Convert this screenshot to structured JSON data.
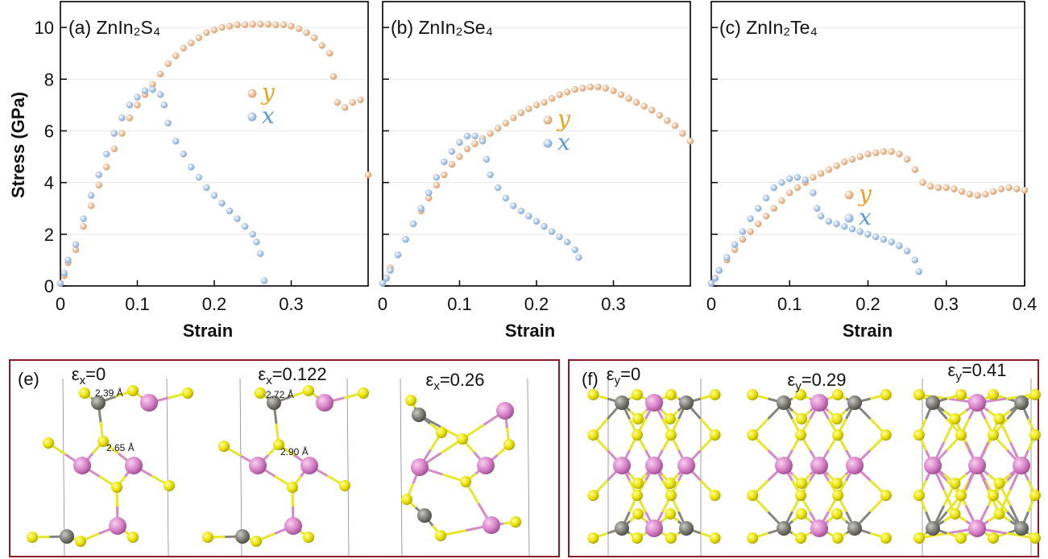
{
  "chart_data": [
    {
      "type": "scatter",
      "title": "(a) ZnIn₂S₄",
      "xlabel": "Strain",
      "ylabel": "Stress (GPa)",
      "xlim": [
        0,
        0.4
      ],
      "ylim": [
        0,
        11
      ],
      "xticks": [
        0,
        0.1,
        0.2,
        0.3
      ],
      "yticks": [
        0,
        2,
        4,
        6,
        8,
        10
      ],
      "ytick_labels": true,
      "grid": true,
      "series": [
        {
          "name": "y",
          "color": "#e0a878",
          "x": [
            0,
            0.005,
            0.01,
            0.02,
            0.03,
            0.04,
            0.05,
            0.06,
            0.07,
            0.08,
            0.09,
            0.1,
            0.11,
            0.12,
            0.13,
            0.14,
            0.15,
            0.16,
            0.17,
            0.18,
            0.19,
            0.2,
            0.21,
            0.22,
            0.23,
            0.24,
            0.25,
            0.26,
            0.27,
            0.28,
            0.29,
            0.3,
            0.31,
            0.32,
            0.33,
            0.34,
            0.35,
            0.355,
            0.36,
            0.37,
            0.38,
            0.39,
            0.4
          ],
          "values": [
            0.1,
            0.4,
            0.9,
            1.4,
            2.3,
            3.1,
            3.9,
            4.6,
            5.3,
            5.9,
            6.5,
            7.0,
            7.4,
            7.8,
            8.2,
            8.6,
            8.9,
            9.2,
            9.4,
            9.6,
            9.8,
            9.9,
            10.0,
            10.05,
            10.1,
            10.1,
            10.12,
            10.13,
            10.12,
            10.1,
            10.1,
            10.05,
            9.95,
            9.8,
            9.6,
            9.3,
            9.0,
            8.1,
            7.1,
            6.9,
            7.1,
            7.2,
            4.3
          ]
        },
        {
          "name": "x",
          "color": "#8fb2dc",
          "x": [
            0,
            0.005,
            0.01,
            0.02,
            0.03,
            0.04,
            0.05,
            0.06,
            0.07,
            0.08,
            0.09,
            0.1,
            0.11,
            0.12,
            0.13,
            0.135,
            0.14,
            0.15,
            0.16,
            0.17,
            0.18,
            0.19,
            0.2,
            0.21,
            0.22,
            0.23,
            0.24,
            0.25,
            0.255,
            0.26,
            0.265
          ],
          "values": [
            0.1,
            0.5,
            1.0,
            1.6,
            2.6,
            3.5,
            4.3,
            5.1,
            5.9,
            6.5,
            7.0,
            7.3,
            7.55,
            7.6,
            7.4,
            7.0,
            6.3,
            5.6,
            5.1,
            4.6,
            4.2,
            3.8,
            3.5,
            3.2,
            2.9,
            2.6,
            2.3,
            2.0,
            1.7,
            1.25,
            0.2
          ]
        }
      ]
    },
    {
      "type": "scatter",
      "title": "(b) ZnIn₂Se₄",
      "xlabel": "Strain",
      "xlim": [
        0,
        0.4
      ],
      "ylim": [
        0,
        11
      ],
      "xticks": [
        0,
        0.1,
        0.2,
        0.3
      ],
      "yticks": [
        0,
        2,
        4,
        6,
        8,
        10
      ],
      "ytick_labels": false,
      "grid": true,
      "series": [
        {
          "name": "y",
          "color": "#e0a878",
          "x": [
            0,
            0.005,
            0.01,
            0.02,
            0.03,
            0.04,
            0.05,
            0.06,
            0.07,
            0.08,
            0.09,
            0.1,
            0.11,
            0.12,
            0.13,
            0.14,
            0.15,
            0.16,
            0.17,
            0.18,
            0.19,
            0.2,
            0.21,
            0.22,
            0.23,
            0.24,
            0.25,
            0.26,
            0.27,
            0.28,
            0.29,
            0.3,
            0.31,
            0.32,
            0.33,
            0.34,
            0.35,
            0.36,
            0.37,
            0.38,
            0.39,
            0.4
          ],
          "values": [
            0.1,
            0.3,
            0.7,
            1.2,
            1.8,
            2.4,
            2.9,
            3.4,
            3.9,
            4.3,
            4.7,
            5.0,
            5.3,
            5.5,
            5.7,
            5.9,
            6.1,
            6.3,
            6.5,
            6.7,
            6.85,
            7.0,
            7.1,
            7.25,
            7.4,
            7.5,
            7.6,
            7.65,
            7.7,
            7.7,
            7.65,
            7.55,
            7.4,
            7.25,
            7.1,
            6.95,
            6.8,
            6.6,
            6.4,
            6.2,
            5.9,
            5.6
          ]
        },
        {
          "name": "x",
          "color": "#8fb2dc",
          "x": [
            0,
            0.005,
            0.01,
            0.02,
            0.03,
            0.04,
            0.05,
            0.06,
            0.07,
            0.08,
            0.09,
            0.1,
            0.11,
            0.12,
            0.13,
            0.135,
            0.14,
            0.15,
            0.16,
            0.17,
            0.18,
            0.19,
            0.2,
            0.21,
            0.22,
            0.23,
            0.24,
            0.25,
            0.255
          ],
          "values": [
            0.1,
            0.3,
            0.6,
            1.2,
            1.8,
            2.4,
            3.0,
            3.6,
            4.2,
            4.8,
            5.2,
            5.55,
            5.8,
            5.8,
            5.6,
            4.9,
            4.3,
            3.8,
            3.4,
            3.1,
            2.9,
            2.7,
            2.5,
            2.3,
            2.1,
            1.9,
            1.7,
            1.4,
            1.1
          ]
        }
      ]
    },
    {
      "type": "scatter",
      "title": "(c) ZnIn₂Te₄",
      "xlabel": "Strain",
      "xlim": [
        0,
        0.4
      ],
      "ylim": [
        0,
        11
      ],
      "xticks": [
        0,
        0.1,
        0.2,
        0.3,
        0.4
      ],
      "yticks": [
        0,
        2,
        4,
        6,
        8,
        10
      ],
      "ytick_labels": false,
      "grid": true,
      "series": [
        {
          "name": "y",
          "color": "#e0a878",
          "x": [
            0,
            0.005,
            0.01,
            0.02,
            0.03,
            0.04,
            0.05,
            0.06,
            0.07,
            0.08,
            0.09,
            0.1,
            0.11,
            0.12,
            0.13,
            0.14,
            0.15,
            0.16,
            0.17,
            0.18,
            0.19,
            0.2,
            0.21,
            0.22,
            0.23,
            0.24,
            0.25,
            0.26,
            0.27,
            0.28,
            0.29,
            0.3,
            0.31,
            0.32,
            0.33,
            0.34,
            0.35,
            0.36,
            0.37,
            0.38,
            0.39,
            0.4
          ],
          "values": [
            0.1,
            0.3,
            0.6,
            1.0,
            1.4,
            1.8,
            2.1,
            2.4,
            2.7,
            3.0,
            3.3,
            3.6,
            3.8,
            4.0,
            4.2,
            4.35,
            4.5,
            4.65,
            4.8,
            4.9,
            5.0,
            5.1,
            5.15,
            5.2,
            5.2,
            5.1,
            4.9,
            4.5,
            4.0,
            3.85,
            3.8,
            3.8,
            3.75,
            3.65,
            3.55,
            3.5,
            3.55,
            3.65,
            3.75,
            3.8,
            3.75,
            3.7
          ]
        },
        {
          "name": "x",
          "color": "#8fb2dc",
          "x": [
            0,
            0.005,
            0.01,
            0.02,
            0.03,
            0.04,
            0.05,
            0.06,
            0.07,
            0.08,
            0.09,
            0.1,
            0.11,
            0.12,
            0.13,
            0.135,
            0.14,
            0.15,
            0.16,
            0.17,
            0.18,
            0.19,
            0.2,
            0.21,
            0.22,
            0.23,
            0.24,
            0.25,
            0.26,
            0.265
          ],
          "values": [
            0.1,
            0.3,
            0.6,
            1.1,
            1.6,
            2.1,
            2.6,
            3.0,
            3.4,
            3.8,
            4.0,
            4.15,
            4.2,
            4.1,
            3.6,
            3.0,
            2.7,
            2.5,
            2.4,
            2.3,
            2.2,
            2.1,
            2.0,
            1.9,
            1.8,
            1.7,
            1.55,
            1.35,
            1.0,
            0.55
          ]
        }
      ]
    }
  ],
  "structures": {
    "e": {
      "label": "(e)",
      "states": [
        {
          "eps": {
            "base": "ε",
            "sub": "x",
            "rest": "=0"
          },
          "bonds": [
            "2.39 Å",
            "2.65 Å"
          ]
        },
        {
          "eps": {
            "base": "ε",
            "sub": "x",
            "rest": "=0.122"
          },
          "bonds": [
            "2.72 Å",
            "2.90 Å"
          ]
        },
        {
          "eps": {
            "base": "ε",
            "sub": "x",
            "rest": "=0.26"
          }
        }
      ]
    },
    "f": {
      "label": "(f)",
      "states": [
        {
          "eps": {
            "base": "ε",
            "sub": "y",
            "rest": "=0"
          }
        },
        {
          "eps": {
            "base": "ε",
            "sub": "y",
            "rest": "=0.29"
          }
        },
        {
          "eps": {
            "base": "ε",
            "sub": "y",
            "rest": "=0.41"
          }
        }
      ]
    }
  }
}
